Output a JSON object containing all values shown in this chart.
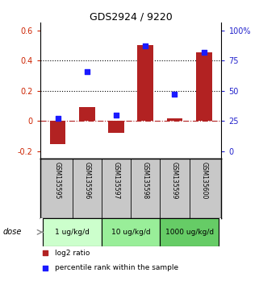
{
  "title": "GDS2924 / 9220",
  "samples": [
    "GSM135595",
    "GSM135596",
    "GSM135597",
    "GSM135598",
    "GSM135599",
    "GSM135600"
  ],
  "log2_ratio": [
    -0.15,
    0.095,
    -0.08,
    0.5,
    0.02,
    0.455
  ],
  "percentile_rank": [
    27,
    66,
    30,
    87,
    47,
    82
  ],
  "left_ylim": [
    -0.25,
    0.65
  ],
  "left_yticks": [
    -0.2,
    0.0,
    0.2,
    0.4,
    0.6
  ],
  "left_yticklabels": [
    "-0.2",
    "0",
    "0.2",
    "0.4",
    "0.6"
  ],
  "right_yticks_pct": [
    0,
    25,
    50,
    75,
    100
  ],
  "right_yticklabels": [
    "0",
    "25",
    "50",
    "75",
    "100%"
  ],
  "hlines_dotted": [
    0.2,
    0.4
  ],
  "hline_zero": 0.0,
  "bar_color": "#b22222",
  "dot_color": "#1a1aff",
  "dose_groups": [
    {
      "label": "1 ug/kg/d",
      "color": "#ccffcc"
    },
    {
      "label": "10 ug/kg/d",
      "color": "#99ee99"
    },
    {
      "label": "1000 ug/kg/d",
      "color": "#66cc66"
    }
  ],
  "legend_red_label": "log2 ratio",
  "legend_blue_label": "percentile rank within the sample",
  "dose_label": "dose",
  "bar_width": 0.55,
  "bg_color": "#ffffff",
  "axis_label_color_left": "#cc2200",
  "axis_label_color_right": "#2222cc",
  "xticklabel_area_color": "#c8c8c8"
}
